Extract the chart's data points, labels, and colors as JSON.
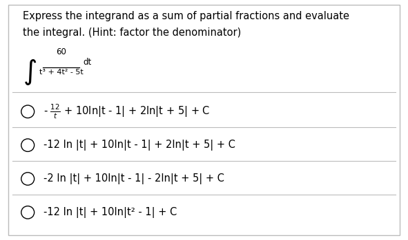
{
  "background_color": "#ffffff",
  "border_color": "#bbbbbb",
  "title_line1": "Express the integrand as a sum of partial fractions and evaluate",
  "title_line2": "the integral. (Hint: factor the denominator)",
  "title_fontsize": 10.5,
  "integral_numerator": "60",
  "integral_denominator": "t³ + 4t² - 5t",
  "integral_dt": "dt",
  "options_raw": [
    [
      "- ",
      "12",
      "t",
      " + 10ln|t - 1| + 2ln|t + 5| + C"
    ],
    [
      "-12 ln |t| + 10ln|t - 1| + 2ln|t + 5| + C"
    ],
    [
      "-2 ln |t| + 10ln|t - 1| - 2ln|t + 5| + C"
    ],
    [
      "-12 ln |t| + 10ln|t² - 1| + C"
    ]
  ],
  "option_fontsize": 10.5,
  "divider_color": "#bbbbbb",
  "text_color": "#000000",
  "fig_width": 5.91,
  "fig_height": 3.49,
  "dpi": 100
}
